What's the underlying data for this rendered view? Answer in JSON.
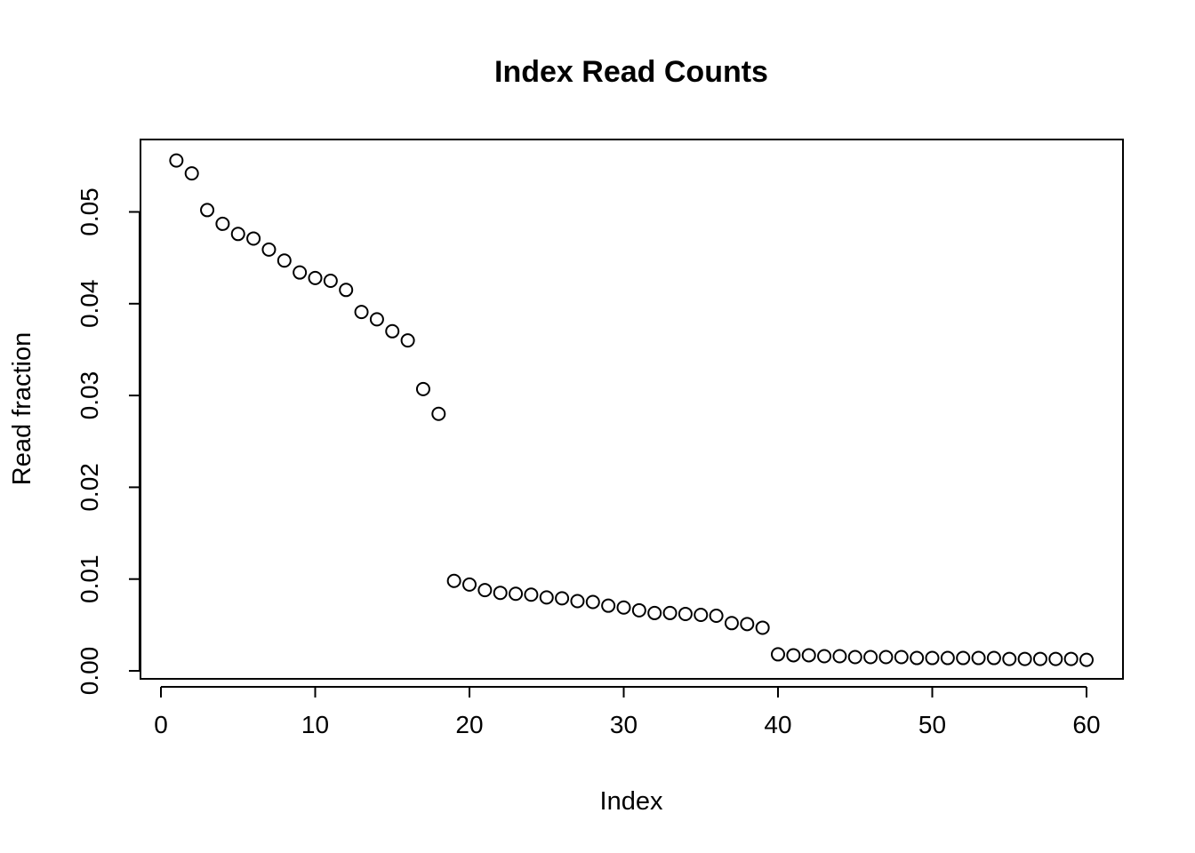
{
  "chart_data": {
    "type": "scatter",
    "title": "Index Read Counts",
    "xlabel": "Index",
    "ylabel": "Read fraction",
    "xlim": [
      0,
      60
    ],
    "ylim": [
      0,
      0.055
    ],
    "x_ticks": [
      0,
      10,
      20,
      30,
      40,
      50,
      60
    ],
    "x_tick_labels": [
      "0",
      "10",
      "20",
      "30",
      "40",
      "50",
      "60"
    ],
    "y_ticks": [
      0,
      0.01,
      0.02,
      0.03,
      0.04,
      0.05
    ],
    "y_tick_labels": [
      "0.00",
      "0.01",
      "0.02",
      "0.03",
      "0.04",
      "0.05"
    ],
    "grid": false,
    "marker": "open-circle",
    "x": [
      1,
      2,
      3,
      4,
      5,
      6,
      7,
      8,
      9,
      10,
      11,
      12,
      13,
      14,
      15,
      16,
      17,
      18,
      19,
      20,
      21,
      22,
      23,
      24,
      25,
      26,
      27,
      28,
      29,
      30,
      31,
      32,
      33,
      34,
      35,
      36,
      37,
      38,
      39,
      40,
      41,
      42,
      43,
      44,
      45,
      46,
      47,
      48,
      49,
      50,
      51,
      52,
      53,
      54,
      55,
      56,
      57,
      58,
      59,
      60
    ],
    "y": [
      0.0556,
      0.0542,
      0.0502,
      0.0487,
      0.0476,
      0.0471,
      0.0459,
      0.0447,
      0.0434,
      0.0428,
      0.0425,
      0.0415,
      0.0391,
      0.0383,
      0.037,
      0.036,
      0.0307,
      0.028,
      0.0098,
      0.0094,
      0.0088,
      0.0085,
      0.0084,
      0.0083,
      0.008,
      0.0079,
      0.0076,
      0.0075,
      0.0071,
      0.0069,
      0.0066,
      0.0063,
      0.0063,
      0.0062,
      0.0061,
      0.006,
      0.0052,
      0.0051,
      0.0047,
      0.0018,
      0.0017,
      0.0017,
      0.0016,
      0.0016,
      0.0015,
      0.0015,
      0.0015,
      0.0015,
      0.0014,
      0.0014,
      0.0014,
      0.0014,
      0.0014,
      0.0014,
      0.0013,
      0.0013,
      0.0013,
      0.0013,
      0.0013,
      0.0012
    ]
  }
}
